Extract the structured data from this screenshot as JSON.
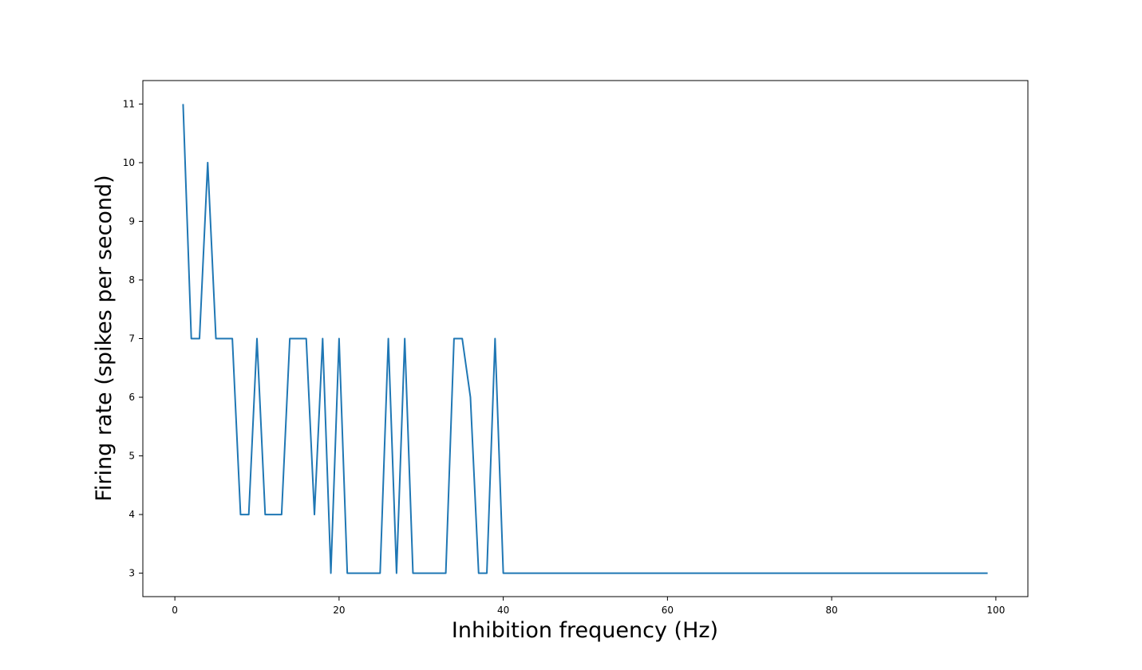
{
  "chart_data": {
    "type": "line",
    "title": "",
    "xlabel": "Inhibition frequency (Hz)",
    "ylabel": "Firing rate (spikes per second)",
    "xlim": [
      -3.9,
      103.9
    ],
    "ylim": [
      2.6,
      11.4
    ],
    "xticks": [
      0,
      20,
      40,
      60,
      80,
      100
    ],
    "yticks": [
      3,
      4,
      5,
      6,
      7,
      8,
      9,
      10,
      11
    ],
    "xtick_labels": [
      "0",
      "20",
      "40",
      "60",
      "80",
      "100"
    ],
    "ytick_labels": [
      "3",
      "4",
      "5",
      "6",
      "7",
      "8",
      "9",
      "10",
      "11"
    ],
    "grid": false,
    "legend": false,
    "line_color": "#1f77b4",
    "series": [
      {
        "x": [
          1,
          2,
          3,
          4,
          5,
          6,
          7,
          8,
          9,
          10,
          11,
          12,
          13,
          14,
          15,
          16,
          17,
          18,
          19,
          20,
          21,
          22,
          23,
          24,
          25,
          26,
          27,
          28,
          29,
          30,
          31,
          32,
          33,
          34,
          35,
          36,
          37,
          38,
          39,
          40,
          41,
          42,
          43,
          44,
          45,
          46,
          47,
          48,
          49,
          50,
          51,
          52,
          53,
          54,
          55,
          56,
          57,
          58,
          59,
          60,
          61,
          62,
          63,
          64,
          65,
          66,
          67,
          68,
          69,
          70,
          71,
          72,
          73,
          74,
          75,
          76,
          77,
          78,
          79,
          80,
          81,
          82,
          83,
          84,
          85,
          86,
          87,
          88,
          89,
          90,
          91,
          92,
          93,
          94,
          95,
          96,
          97,
          98,
          99
        ],
        "values": [
          11,
          7,
          7,
          10,
          7,
          7,
          7,
          4,
          4,
          7,
          4,
          4,
          4,
          7,
          7,
          7,
          4,
          7,
          3,
          7,
          3,
          3,
          3,
          3,
          3,
          7,
          3,
          7,
          3,
          3,
          3,
          3,
          3,
          7,
          7,
          6,
          3,
          3,
          7,
          3,
          3,
          3,
          3,
          3,
          3,
          3,
          3,
          3,
          3,
          3,
          3,
          3,
          3,
          3,
          3,
          3,
          3,
          3,
          3,
          3,
          3,
          3,
          3,
          3,
          3,
          3,
          3,
          3,
          3,
          3,
          3,
          3,
          3,
          3,
          3,
          3,
          3,
          3,
          3,
          3,
          3,
          3,
          3,
          3,
          3,
          3,
          3,
          3,
          3,
          3,
          3,
          3,
          3,
          3,
          3,
          3,
          3,
          3,
          3
        ]
      }
    ]
  }
}
